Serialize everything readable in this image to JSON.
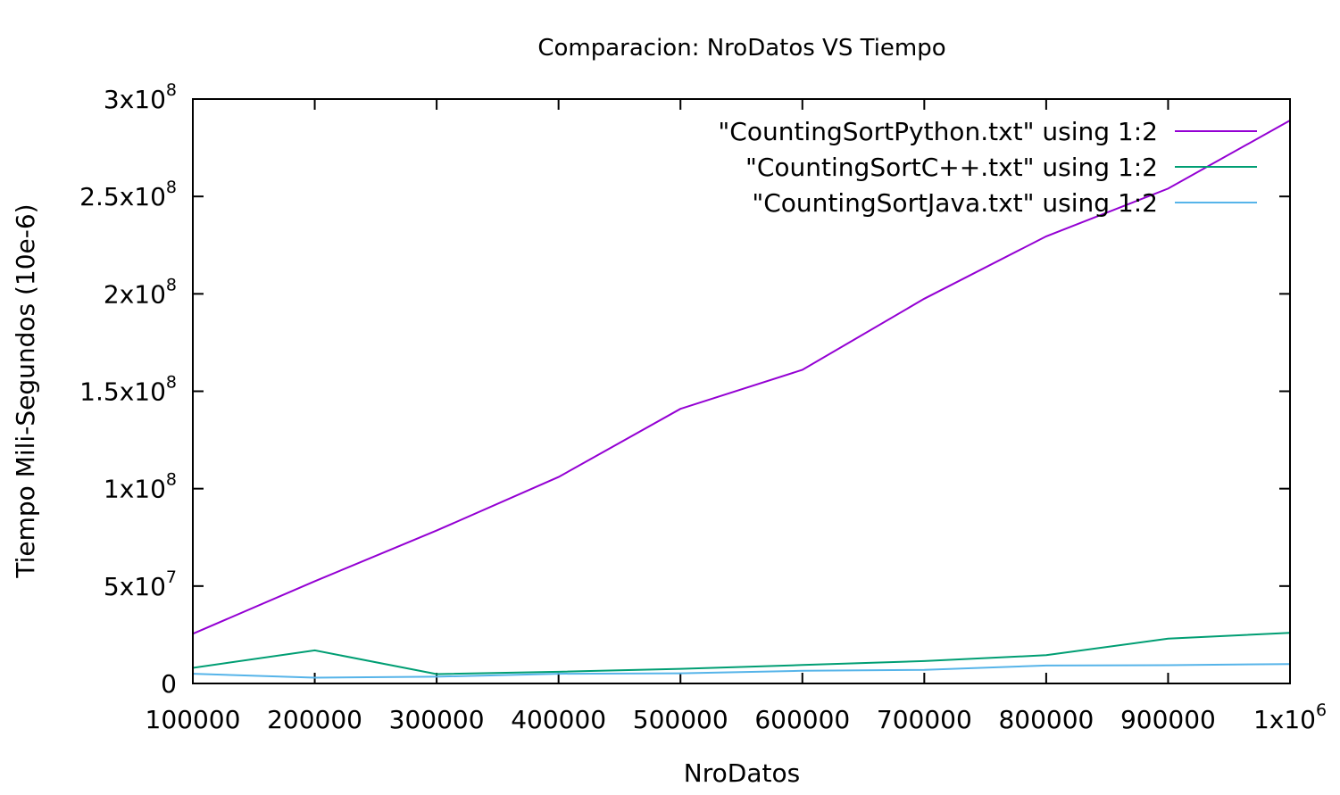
{
  "chart_data": {
    "type": "line",
    "title": "Comparacion: NroDatos VS Tiempo",
    "xlabel": "NroDatos",
    "ylabel": "Tiempo Mili-Segundos (10e-6)",
    "xlim": [
      100000,
      1000000
    ],
    "ylim": [
      0,
      300000000
    ],
    "grid": false,
    "legend_position": "top-right",
    "x": [
      100000,
      200000,
      300000,
      400000,
      500000,
      600000,
      700000,
      800000,
      900000,
      1000000
    ],
    "x_ticks": [
      100000,
      200000,
      300000,
      400000,
      500000,
      600000,
      700000,
      800000,
      900000,
      1000000
    ],
    "x_tick_labels": [
      "100000",
      "200000",
      "300000",
      "400000",
      "500000",
      "600000",
      "700000",
      "800000",
      "900000",
      "1x10^6"
    ],
    "y_ticks": [
      0,
      50000000,
      100000000,
      150000000,
      200000000,
      250000000,
      300000000
    ],
    "y_tick_labels": [
      "0",
      "5x10^7",
      "1x10^8",
      "1.5x10^8",
      "2x10^8",
      "2.5x10^8",
      "3x10^8"
    ],
    "series": [
      {
        "name": "\"CountingSortPython.txt\" using 1:2",
        "color": "#9400d3",
        "values": [
          25500000,
          52500000,
          78500000,
          106000000,
          141000000,
          161000000,
          197500000,
          229500000,
          254000000,
          289000000
        ]
      },
      {
        "name": "\"CountingSortC++.txt\" using 1:2",
        "color": "#009e73",
        "values": [
          8000000,
          17000000,
          4800000,
          6000000,
          7500000,
          9500000,
          11500000,
          14500000,
          23000000,
          26000000
        ]
      },
      {
        "name": "\"CountingSortJava.txt\" using 1:2",
        "color": "#56b4e9",
        "values": [
          5000000,
          3000000,
          3500000,
          5000000,
          5200000,
          6500000,
          7000000,
          9200000,
          9400000,
          10000000
        ]
      }
    ]
  }
}
